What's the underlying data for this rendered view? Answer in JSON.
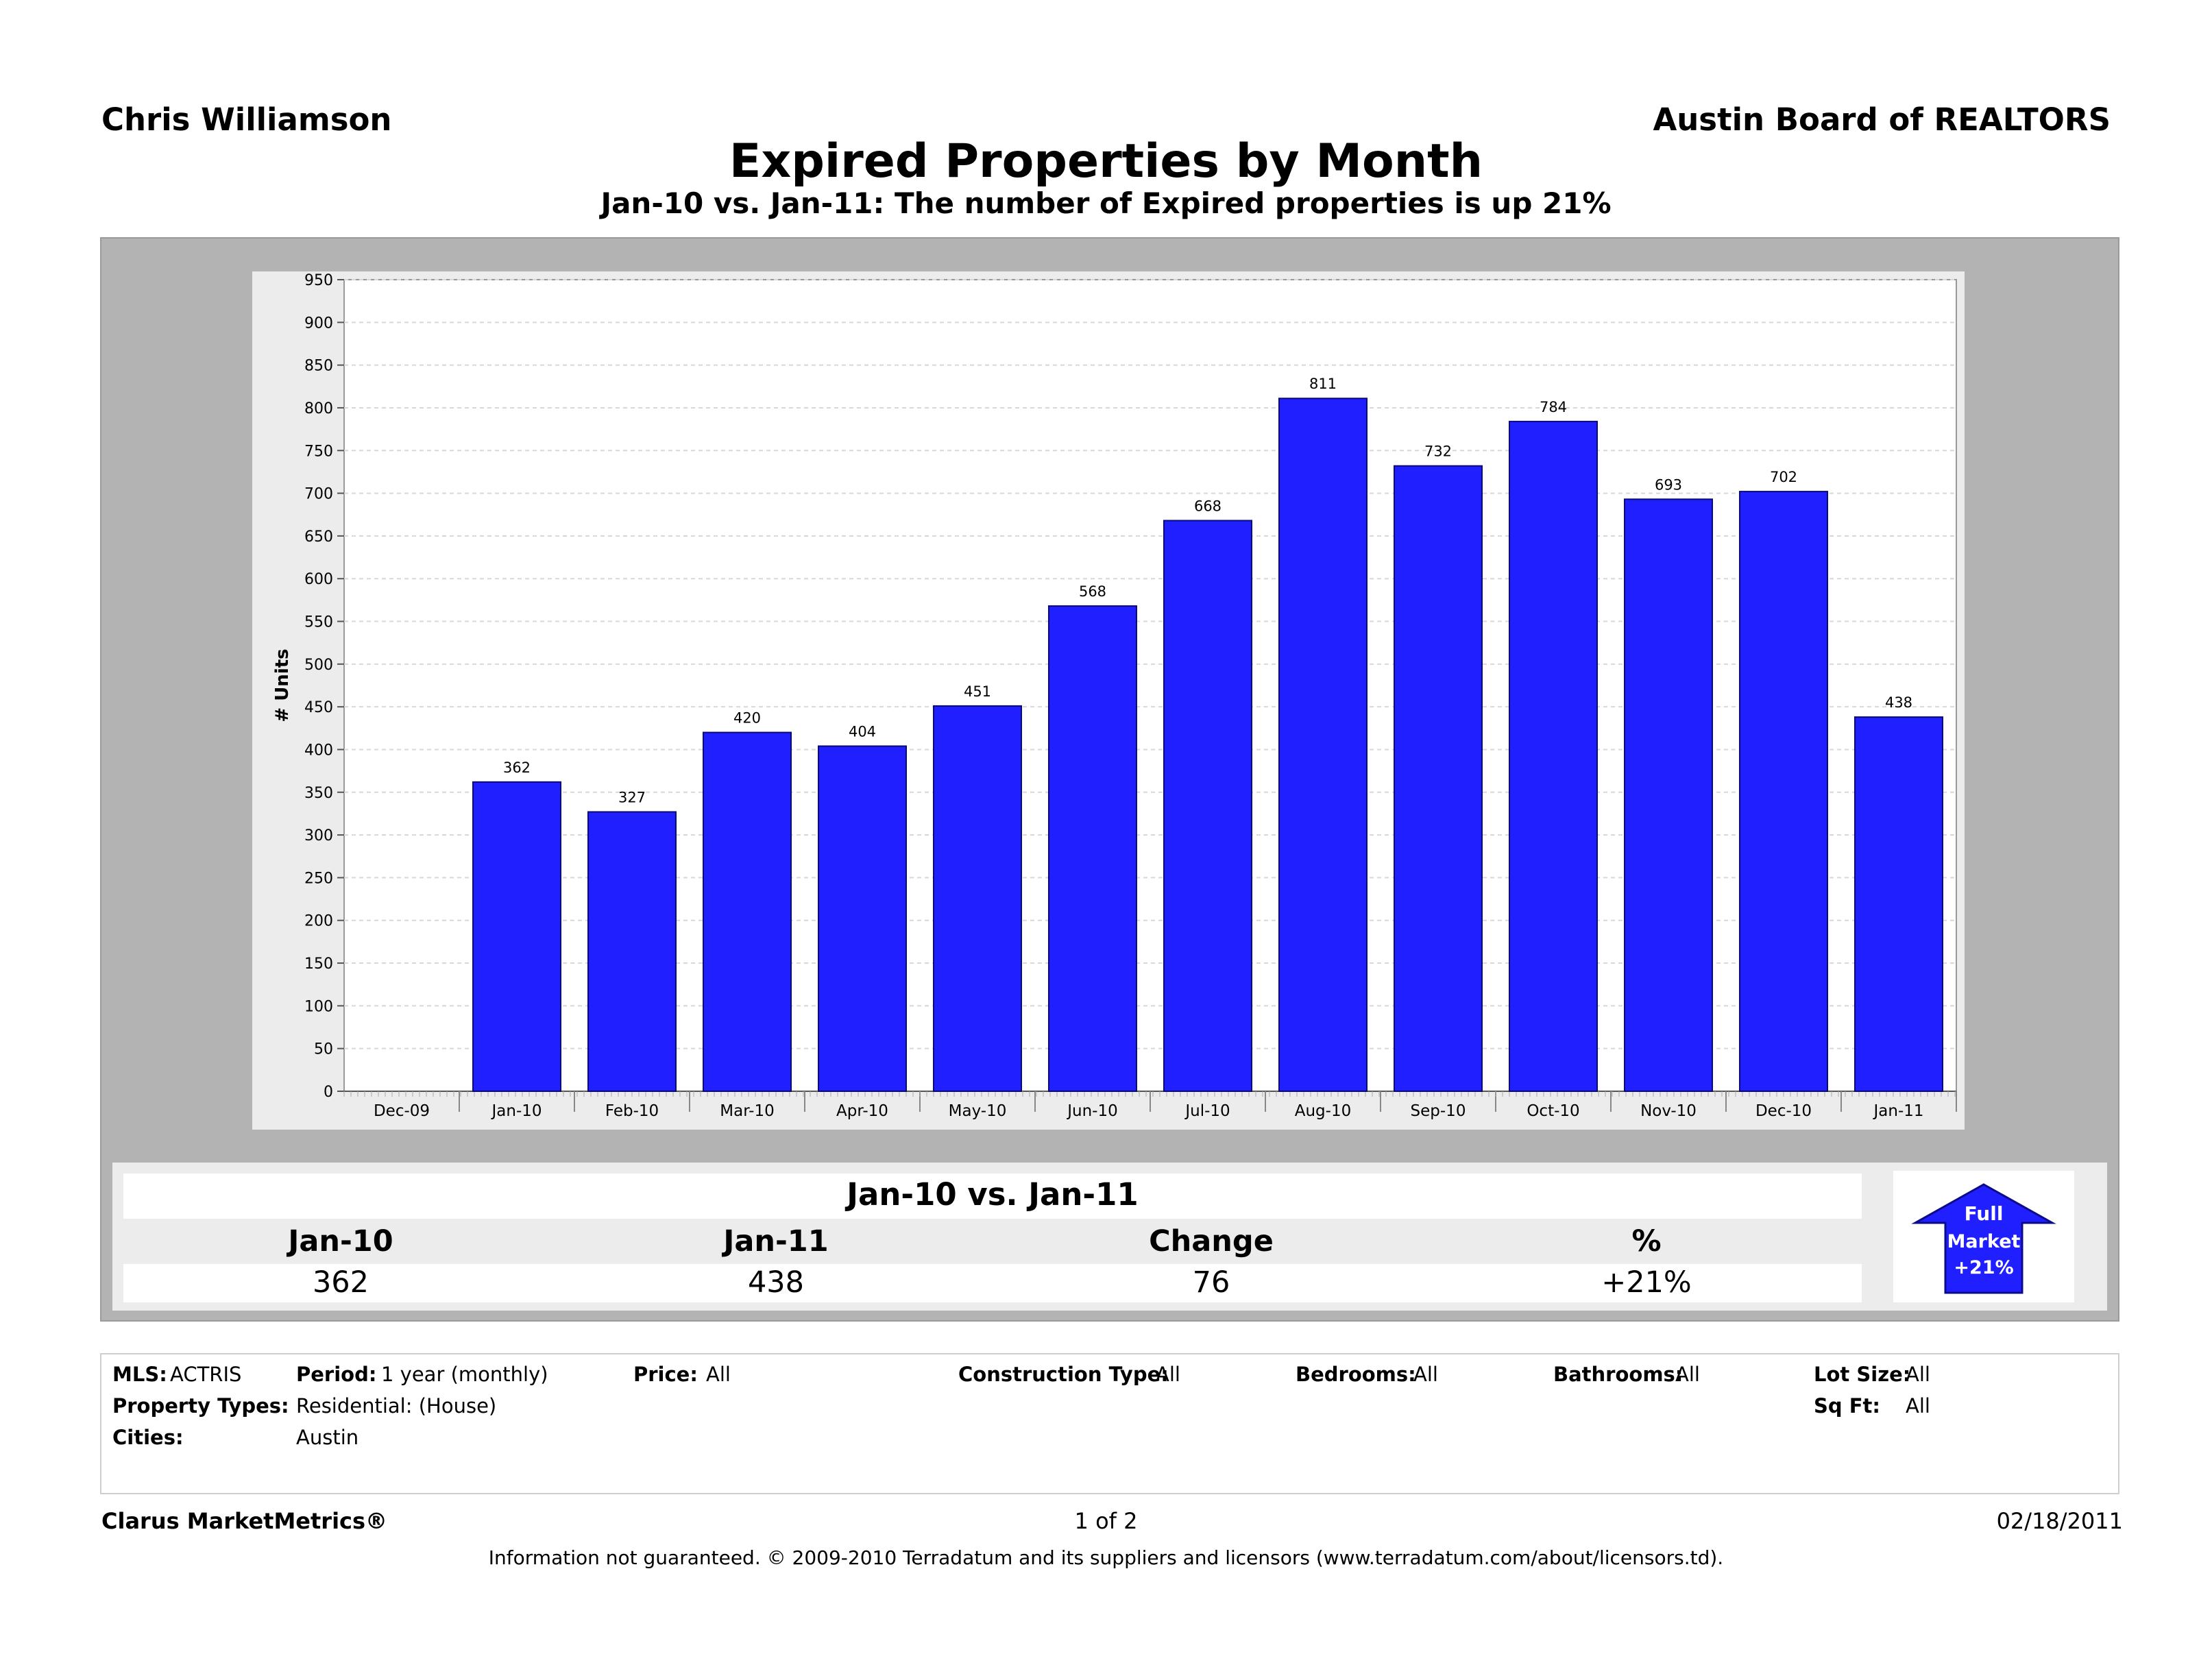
{
  "header": {
    "agent": "Chris Williamson",
    "board": "Austin Board of REALTORS"
  },
  "chart_data": {
    "type": "bar",
    "title": "Expired Properties by Month",
    "subtitle": "Jan-10 vs. Jan-11: The number of Expired properties is up 21%",
    "ylabel": "# Units",
    "xlabel": "",
    "ylim": [
      0,
      950
    ],
    "ytick_step": 50,
    "grid": true,
    "x_ticks": [
      "Dec-09",
      "Jan-10",
      "Feb-10",
      "Mar-10",
      "Apr-10",
      "May-10",
      "Jun-10",
      "Jul-10",
      "Aug-10",
      "Sep-10",
      "Oct-10",
      "Nov-10",
      "Dec-10",
      "Jan-11"
    ],
    "categories": [
      "Jan-10",
      "Feb-10",
      "Mar-10",
      "Apr-10",
      "May-10",
      "Jun-10",
      "Jul-10",
      "Aug-10",
      "Sep-10",
      "Oct-10",
      "Nov-10",
      "Dec-10",
      "Jan-11"
    ],
    "values": [
      362,
      327,
      420,
      404,
      451,
      568,
      668,
      811,
      732,
      784,
      693,
      702,
      438
    ],
    "bar_color": "#1f1fff"
  },
  "summary": {
    "title": "Jan-10 vs. Jan-11",
    "headers": [
      "Jan-10",
      "Jan-11",
      "Change",
      "%"
    ],
    "values": [
      "362",
      "438",
      "76",
      "+21%"
    ],
    "badge": {
      "line1": "Full",
      "line2": "Market",
      "line3": "+21%",
      "color": "#1f1fff"
    }
  },
  "filters": {
    "mls_label": "MLS:",
    "mls_value": "ACTRIS",
    "period_label": "Period:",
    "period_value": "1 year (monthly)",
    "price_label": "Price:",
    "price_value": "All",
    "construction_label": "Construction Type:",
    "construction_value": "All",
    "bedrooms_label": "Bedrooms:",
    "bedrooms_value": "All",
    "bathrooms_label": "Bathrooms:",
    "bathrooms_value": "All",
    "lotsize_label": "Lot Size:",
    "lotsize_value": "All",
    "proptypes_label": "Property Types:",
    "proptypes_value": "Residential: (House)",
    "sqft_label": "Sq Ft:",
    "sqft_value": "All",
    "cities_label": "Cities:",
    "cities_value": "Austin"
  },
  "footer": {
    "brand": "Clarus MarketMetrics®",
    "page": "1 of 2",
    "date": "02/18/2011",
    "disclaimer": "Information not guaranteed.  © 2009-2010 Terradatum and its suppliers and licensors (www.terradatum.com/about/licensors.td)."
  }
}
